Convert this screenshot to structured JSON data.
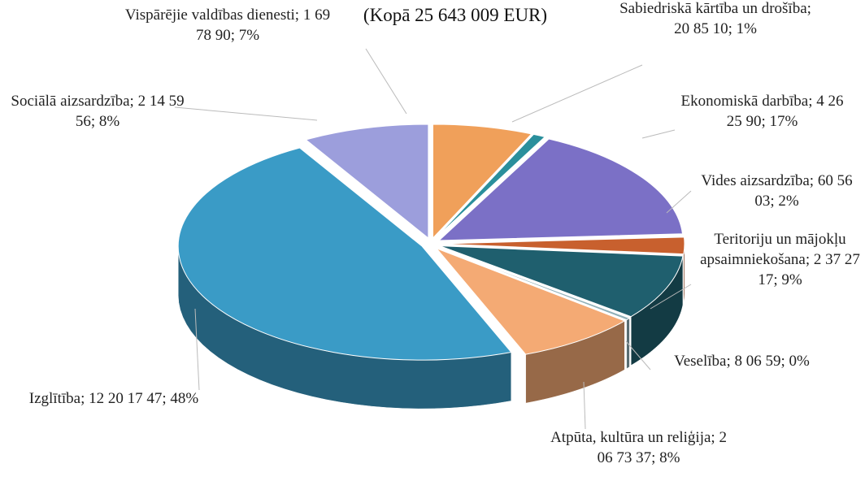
{
  "chart_data": {
    "type": "pie3d",
    "title": "(Kopā 25 643 009 EUR)",
    "separator": "; ",
    "categories": [
      "Vispārējie valdības dienesti",
      "Sabiedriskā kārtība un drošība",
      "Ekonomiskā darbība",
      "Vides aizsardzība",
      "Teritoriju un mājokļu apsaimniekošana",
      "Veselība",
      "Atpūta, kultūra un reliģija",
      "Izglītība",
      "Sociālā aizsardzība"
    ],
    "values": [
      1697890,
      208510,
      4262590,
      605603,
      2372717,
      80659,
      2067337,
      12201747,
      2145956
    ],
    "value_labels": [
      "1 69 78 90",
      "20 85 10",
      "4 26 25 90",
      "60 56 03",
      "2 37 27 17",
      "8 06 59",
      "2 06 73 37",
      "12 20 17 47",
      "2 14 59 56"
    ],
    "percent_labels": [
      "7%",
      "1%",
      "17%",
      "2%",
      "9%",
      "0%",
      "8%",
      "48%",
      "8%"
    ],
    "colors": [
      "#f0a05a",
      "#2a8f9c",
      "#7b70c6",
      "#c8602e",
      "#1f5f6e",
      "#8fb0b8",
      "#f4aa74",
      "#3a9bc6",
      "#9c9edc"
    ]
  }
}
